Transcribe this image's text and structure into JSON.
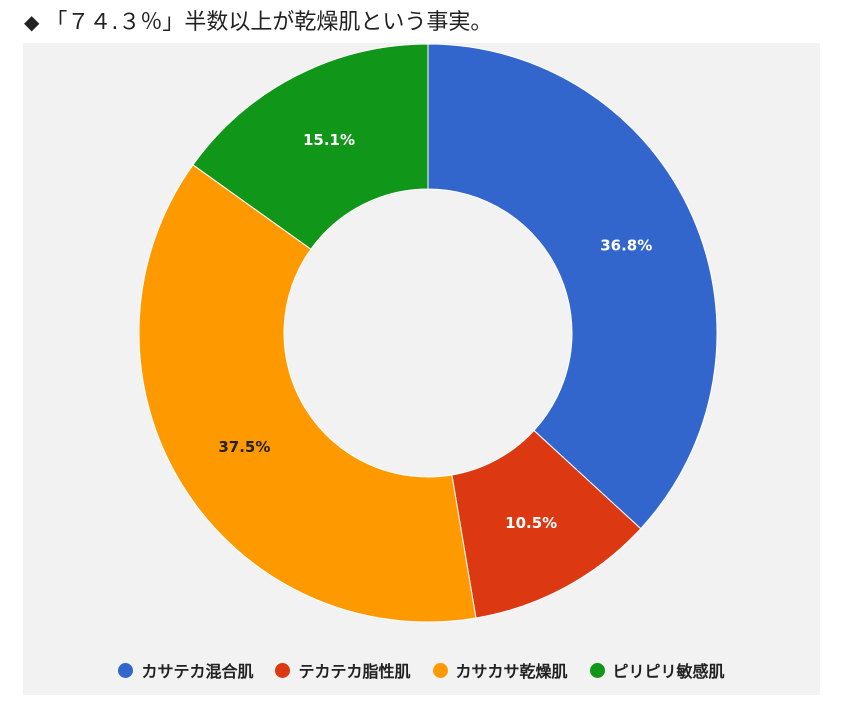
{
  "heading": {
    "marker": "◆",
    "text": "「７４.３％」半数以上が乾燥肌という事実。"
  },
  "chart_data": {
    "type": "pie",
    "donut": true,
    "title": "",
    "legend_position": "bottom",
    "start_angle_deg": 0,
    "direction": "clockwise",
    "slices": [
      {
        "name": "カサテカ混合肌",
        "value": 36.8,
        "label": "36.8%",
        "color": "#3366cc",
        "label_color": "#ffffff"
      },
      {
        "name": "テカテカ脂性肌",
        "value": 10.5,
        "label": "10.5%",
        "color": "#dc3912",
        "label_color": "#ffffff"
      },
      {
        "name": "カサカサ乾燥肌",
        "value": 37.5,
        "label": "37.5%",
        "color": "#ff9900",
        "label_color": "#222222"
      },
      {
        "name": "ピリピリ敏感肌",
        "value": 15.1,
        "label": "15.1%",
        "color": "#109618",
        "label_color": "#ffffff"
      }
    ]
  }
}
